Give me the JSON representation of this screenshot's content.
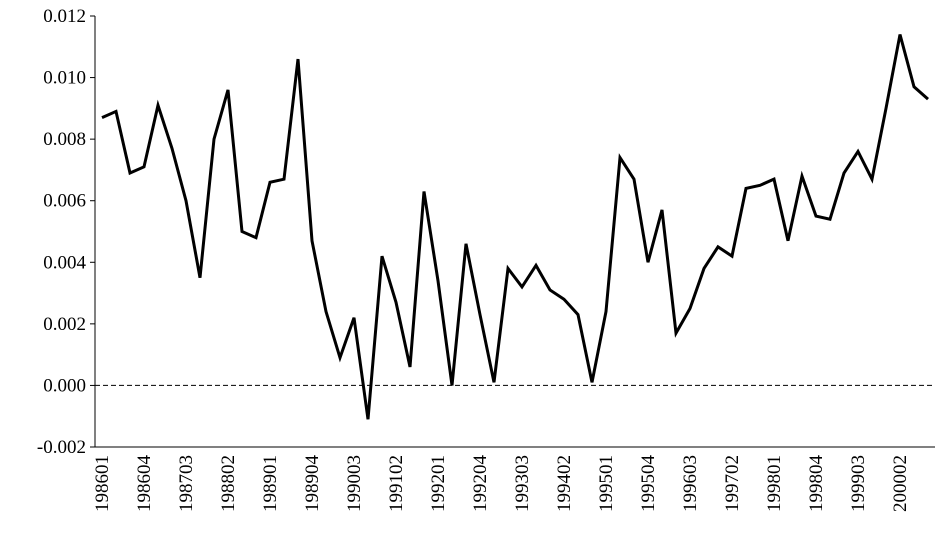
{
  "chart_data": {
    "type": "line",
    "categories": [
      "198601",
      null,
      null,
      "198604",
      null,
      null,
      "198703",
      null,
      null,
      "198802",
      null,
      null,
      "198901",
      null,
      null,
      "198904",
      null,
      null,
      "199003",
      null,
      null,
      "199102",
      null,
      null,
      "199201",
      null,
      null,
      "199204",
      null,
      null,
      "199303",
      null,
      null,
      "199402",
      null,
      null,
      "199501",
      null,
      null,
      "199504",
      null,
      null,
      "199603",
      null,
      null,
      "199702",
      null,
      null,
      "199801",
      null,
      null,
      "199804",
      null,
      null,
      "199903",
      null,
      null,
      "200002",
      null,
      null
    ],
    "series": [
      {
        "color": "#000000",
        "values": [
          0.0087,
          0.0089,
          0.0069,
          0.0071,
          0.0091,
          0.0077,
          0.006,
          0.0035,
          0.008,
          0.0096,
          0.005,
          0.0048,
          0.0066,
          0.0067,
          0.0106,
          0.0047,
          0.0024,
          0.0009,
          0.0022,
          -0.0011,
          0.0042,
          0.0027,
          0.0006,
          0.0063,
          0.0034,
          0.0,
          0.0046,
          0.0023,
          0.0001,
          0.0038,
          0.0032,
          0.0039,
          0.0031,
          0.0028,
          0.0023,
          0.0001,
          0.0024,
          0.0074,
          0.0067,
          0.004,
          0.0057,
          0.0017,
          0.0025,
          0.0038,
          0.0045,
          0.0042,
          0.0064,
          0.0065,
          0.0067,
          0.0047,
          0.0068,
          0.0055,
          0.0054,
          0.0069,
          0.0076,
          0.0067,
          0.009,
          0.0114,
          0.0097,
          0.0093
        ]
      }
    ],
    "ylim": [
      -0.002,
      0.012
    ],
    "yticks": [
      {
        "value": -0.002,
        "label": "-0.002"
      },
      {
        "value": 0,
        "label": "0.000"
      },
      {
        "value": 0.002,
        "label": "0.002"
      },
      {
        "value": 0.004,
        "label": "0.004"
      },
      {
        "value": 0.006,
        "label": "0.006"
      },
      {
        "value": 0.008,
        "label": "0.008"
      },
      {
        "value": 0.01,
        "label": "0.010"
      },
      {
        "value": 0.012,
        "label": "0.012"
      }
    ],
    "hline": 0,
    "grid": false
  }
}
